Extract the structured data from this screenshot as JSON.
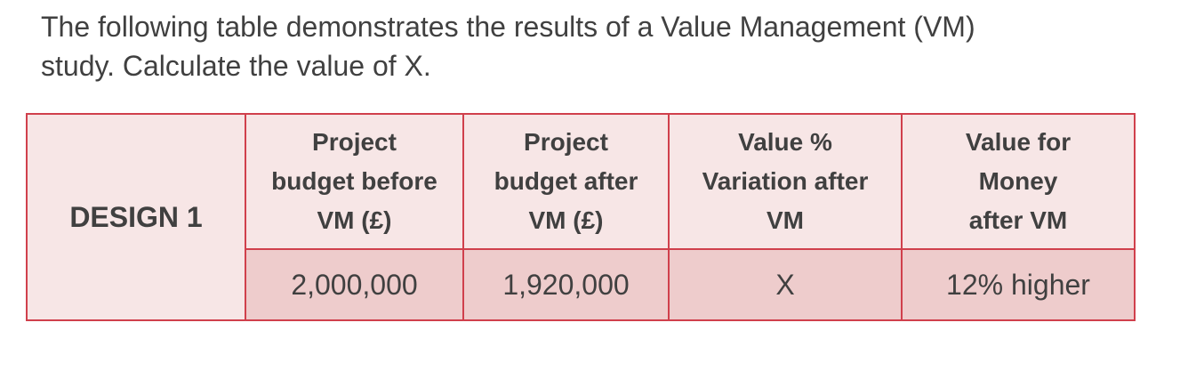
{
  "question": {
    "line1": "The following table demonstrates the results of a Value Management (VM)",
    "line2": "study. Calculate the value of X."
  },
  "table": {
    "row_label": "DESIGN 1",
    "headers": [
      {
        "lines": [
          "Project",
          "budget before",
          "VM (£)"
        ]
      },
      {
        "lines": [
          "Project",
          "budget after",
          "VM (£)"
        ]
      },
      {
        "lines": [
          "Value %",
          "Variation after",
          "VM"
        ]
      },
      {
        "lines": [
          "Value for",
          "Money",
          "after VM"
        ]
      }
    ],
    "values": [
      "2,000,000",
      "1,920,000",
      "X",
      "12% higher"
    ]
  },
  "colors": {
    "border": "#d0404c",
    "header_fill": "#f7e6e6",
    "value_fill": "#eecccc",
    "text": "#404040"
  }
}
